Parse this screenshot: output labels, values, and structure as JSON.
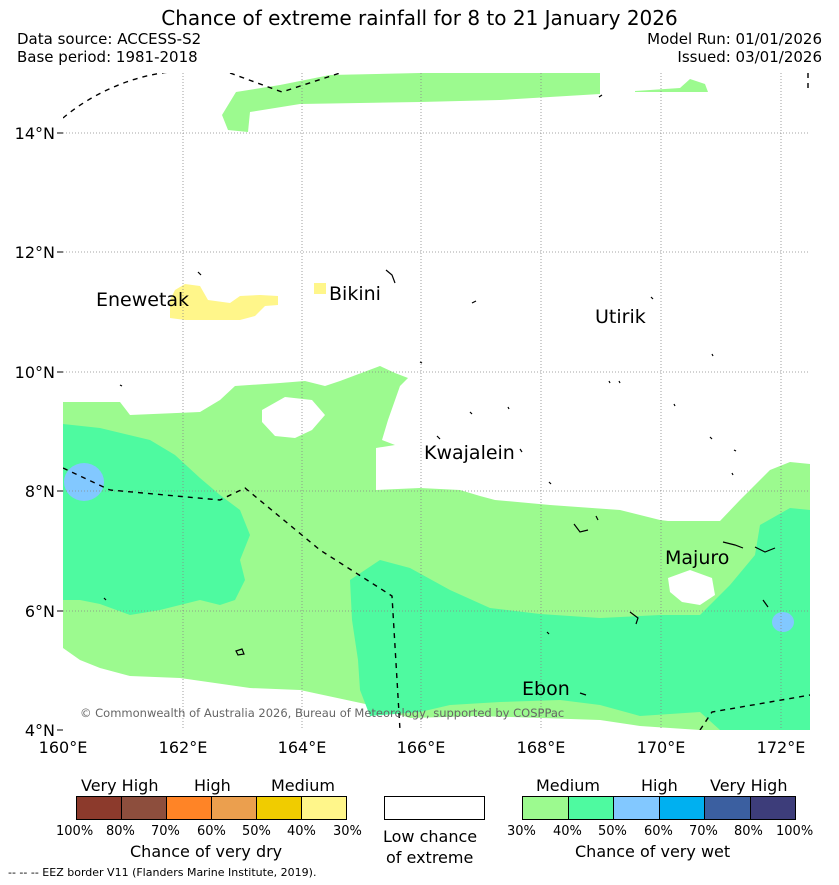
{
  "title": "Chance of extreme rainfall for 8 to 21 January 2026",
  "data_source": "Data source: ACCESS-S2",
  "base_period": "Base period: 1981-2018",
  "model_run": "Model Run: 01/01/2026",
  "issued": "Issued: 03/01/2026",
  "places": {
    "enewetak": "Enewetak",
    "bikini": "Bikini",
    "utirik": "Utirik",
    "kwajalein": "Kwajalein",
    "majuro": "Majuro",
    "ebon": "Ebon"
  },
  "lat_ticks": [
    "14°N",
    "12°N",
    "10°N",
    "8°N",
    "6°N",
    "4°N"
  ],
  "lon_ticks": [
    "160°E",
    "162°E",
    "164°E",
    "166°E",
    "168°E",
    "170°E",
    "172°E"
  ],
  "copyright": "© Commonwealth of Australia 2026, Bureau of Meteorology, supported by COSPPac",
  "legend": {
    "dry": {
      "groups": [
        "Very High",
        "High",
        "Medium"
      ],
      "percents": [
        "100%",
        "80%",
        "70%",
        "60%",
        "50%",
        "40%",
        "30%"
      ],
      "colors": [
        "#8c3a2c",
        "#8d4e3d",
        "#ff8426",
        "#eb9f4e",
        "#f0cc00",
        "#fff68a"
      ],
      "caption": "Chance of very dry"
    },
    "neutral": {
      "line1": "Low chance",
      "line2": "of extreme",
      "color": "#ffffff"
    },
    "wet": {
      "groups": [
        "Medium",
        "High",
        "Very High"
      ],
      "percents": [
        "30%",
        "40%",
        "50%",
        "60%",
        "70%",
        "80%",
        "100%"
      ],
      "colors": [
        "#9cfa8f",
        "#4efaa0",
        "#82c8ff",
        "#00b0f0",
        "#3b5fa0",
        "#3d3d7a"
      ],
      "caption": "Chance of very wet"
    }
  },
  "eez_note": "--  --  -- EEZ border V11 (Flanders Marine Institute, 2019)."
}
